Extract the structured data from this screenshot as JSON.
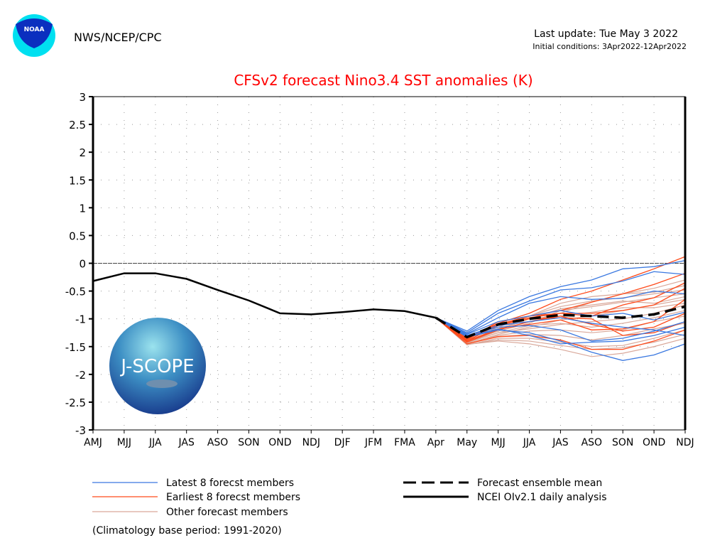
{
  "header": {
    "agency": "NWS/NCEP/CPC",
    "logo_text": "NOAA",
    "last_update": "Last update: Tue May 3 2022",
    "initial_conditions": "Initial conditions: 3Apr2022-12Apr2022"
  },
  "watermark": {
    "text": "J-SCOPE"
  },
  "colors": {
    "title": "#ff0000",
    "latest": "#3a78e0",
    "earliest": "#ff4a1a",
    "other": "#d9a89a",
    "mean": "#000000",
    "observed": "#000000"
  },
  "chart_data": {
    "type": "line",
    "title": "CFSv2 forecast Nino3.4 SST anomalies (K)",
    "xlabel": "",
    "ylabel": "",
    "categories": [
      "AMJ",
      "MJJ",
      "JJA",
      "JAS",
      "ASO",
      "SON",
      "OND",
      "NDJ",
      "DJF",
      "JFM",
      "FMA",
      "Apr",
      "May",
      "MJJ",
      "JJA",
      "JAS",
      "ASO",
      "SON",
      "OND",
      "NDJ"
    ],
    "ylim": [
      -3,
      3
    ],
    "yticks": [
      "3",
      "2.5",
      "2",
      "1.5",
      "1",
      "0.5",
      "0",
      "-0.5",
      "-1",
      "-1.5",
      "-2",
      "-2.5",
      "-3"
    ],
    "grid": true,
    "legend_placement": "bottom",
    "observed": {
      "name": "NCEI OIv2.1 daily analysis",
      "values": [
        -0.32,
        -0.18,
        -0.18,
        -0.28,
        -0.48,
        -0.67,
        -0.9,
        -0.92,
        -0.88,
        -0.83,
        -0.86,
        -0.98
      ]
    },
    "ensemble_mean": {
      "name": "Forecast ensemble mean",
      "values": [
        -0.98,
        -1.33,
        -1.1,
        -1.0,
        -0.93,
        -0.95,
        -0.98,
        -0.92,
        -0.78
      ]
    },
    "forecast_start_index": 11,
    "latest_members": {
      "name": "Latest 8 forecst members",
      "values": [
        [
          -0.98,
          -1.22,
          -0.85,
          -0.6,
          -0.42,
          -0.3,
          -0.1,
          -0.06,
          0.05
        ],
        [
          -0.98,
          -1.25,
          -0.9,
          -0.68,
          -0.48,
          -0.44,
          -0.32,
          -0.15,
          -0.2
        ],
        [
          -0.98,
          -1.27,
          -0.98,
          -0.72,
          -0.6,
          -0.65,
          -0.63,
          -0.5,
          -0.55
        ],
        [
          -0.98,
          -1.3,
          -1.12,
          -1.05,
          -0.98,
          -1.08,
          -1.15,
          -1.2,
          -1.3
        ],
        [
          -0.98,
          -1.3,
          -1.15,
          -1.12,
          -1.2,
          -1.4,
          -1.35,
          -1.22,
          -1.05
        ],
        [
          -0.98,
          -1.33,
          -1.2,
          -1.25,
          -1.4,
          -1.6,
          -1.75,
          -1.65,
          -1.45
        ],
        [
          -0.98,
          -1.28,
          -1.05,
          -0.95,
          -0.85,
          -0.95,
          -0.9,
          -1.02,
          -0.88
        ],
        [
          -0.98,
          -1.32,
          -1.18,
          -1.3,
          -1.45,
          -1.42,
          -1.4,
          -1.3,
          -1.15
        ]
      ]
    },
    "earliest_members": {
      "name": "Earliest 8 forecst members",
      "values": [
        [
          -0.98,
          -1.35,
          -1.08,
          -0.9,
          -0.65,
          -0.5,
          -0.3,
          -0.1,
          0.12
        ],
        [
          -0.98,
          -1.38,
          -1.05,
          -0.95,
          -0.85,
          -0.7,
          -0.55,
          -0.38,
          -0.18
        ],
        [
          -0.98,
          -1.4,
          -1.1,
          -0.98,
          -0.9,
          -0.9,
          -0.85,
          -0.75,
          -0.45
        ],
        [
          -0.98,
          -1.42,
          -1.2,
          -1.05,
          -0.95,
          -1.1,
          -1.22,
          -1.15,
          -0.9
        ],
        [
          -0.98,
          -1.45,
          -1.32,
          -1.3,
          -1.38,
          -1.55,
          -1.55,
          -1.4,
          -1.2
        ],
        [
          -0.98,
          -1.36,
          -1.12,
          -1.0,
          -0.98,
          -1.0,
          -1.3,
          -1.25,
          -1.05
        ],
        [
          -0.98,
          -1.4,
          -1.18,
          -1.1,
          -1.02,
          -1.2,
          -1.18,
          -1.05,
          -0.65
        ],
        [
          -0.98,
          -1.35,
          -1.1,
          -0.95,
          -0.9,
          -0.95,
          -0.75,
          -0.62,
          -0.35
        ]
      ]
    },
    "other_members": {
      "name": "Other forecast members",
      "values": [
        [
          -0.98,
          -1.4,
          -1.2,
          -1.05,
          -0.9,
          -0.7,
          -0.55,
          -0.45,
          -0.3
        ],
        [
          -0.98,
          -1.38,
          -1.15,
          -0.95,
          -0.72,
          -0.6,
          -0.55,
          -0.52,
          -0.4
        ],
        [
          -0.98,
          -1.42,
          -1.22,
          -1.08,
          -0.85,
          -0.78,
          -0.7,
          -0.62,
          -0.55
        ],
        [
          -0.98,
          -1.45,
          -1.28,
          -1.15,
          -1.02,
          -0.95,
          -0.85,
          -0.75,
          -0.65
        ],
        [
          -0.98,
          -1.44,
          -1.3,
          -1.22,
          -1.2,
          -1.25,
          -1.2,
          -1.05,
          -0.95
        ],
        [
          -0.98,
          -1.47,
          -1.35,
          -1.35,
          -1.42,
          -1.5,
          -1.48,
          -1.35,
          -1.2
        ],
        [
          -0.98,
          -1.46,
          -1.4,
          -1.45,
          -1.55,
          -1.68,
          -1.62,
          -1.5,
          -1.35
        ],
        [
          -0.98,
          -1.43,
          -1.25,
          -1.18,
          -1.1,
          -1.05,
          -1.0,
          -0.9,
          -0.75
        ],
        [
          -0.98,
          -1.4,
          -1.2,
          -1.0,
          -0.82,
          -0.75,
          -0.68,
          -0.72,
          -0.6
        ],
        [
          -0.98,
          -1.45,
          -1.32,
          -1.28,
          -1.3,
          -1.38,
          -1.3,
          -1.18,
          -1.08
        ],
        [
          -0.98,
          -1.41,
          -1.18,
          -1.0,
          -0.95,
          -0.88,
          -0.8,
          -0.8,
          -0.72
        ],
        [
          -0.98,
          -1.42,
          -1.25,
          -1.12,
          -1.08,
          -1.15,
          -1.08,
          -0.98,
          -0.85
        ],
        [
          -0.98,
          -1.46,
          -1.38,
          -1.4,
          -1.48,
          -1.55,
          -1.52,
          -1.42,
          -1.28
        ],
        [
          -0.98,
          -1.39,
          -1.12,
          -0.95,
          -0.78,
          -0.68,
          -0.62,
          -0.55,
          -0.48
        ]
      ]
    },
    "note": "(Climatology base period: 1991-2020)"
  }
}
